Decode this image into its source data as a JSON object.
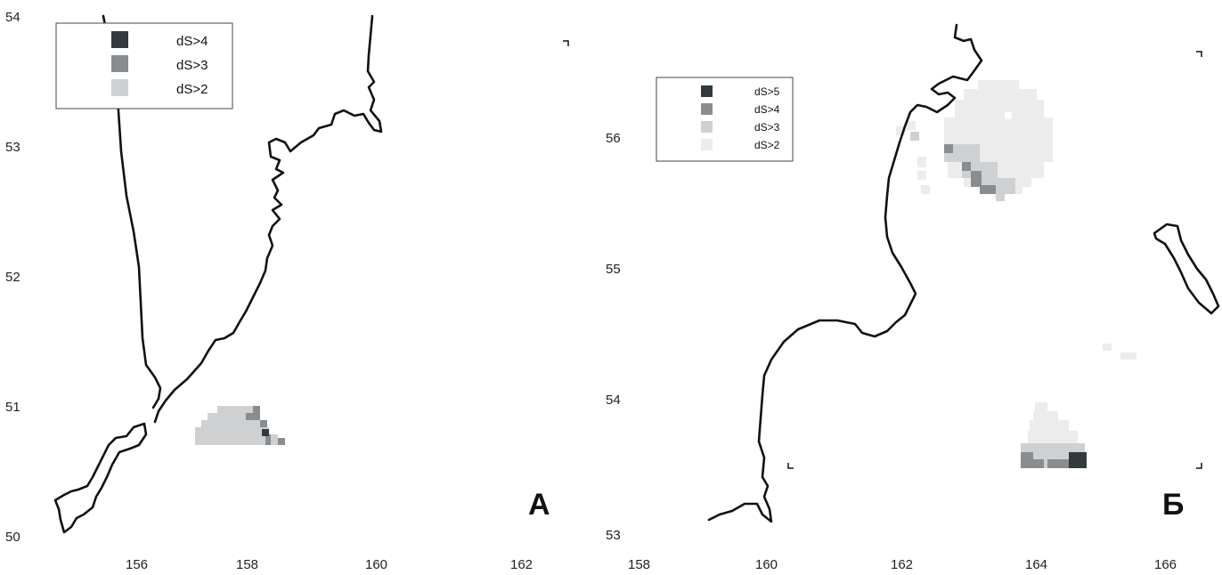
{
  "colors": {
    "gt5": "#333a3e",
    "gt4": "#8a8d8f",
    "gt3": "#cfd0d1",
    "gt2": "#ececec",
    "coast": "#111111"
  },
  "panels": [
    {
      "letter": "А",
      "x_ticks": [
        "156",
        "158",
        "160",
        "162"
      ],
      "y_ticks": [
        "54",
        "53",
        "52",
        "51",
        "50"
      ],
      "legend": [
        {
          "label": "dS>4",
          "color": "#333a3e"
        },
        {
          "label": "dS>3",
          "color": "#8a8d8f"
        },
        {
          "label": "dS>2",
          "color": "#cfd0d1"
        }
      ]
    },
    {
      "letter": "Б",
      "x_ticks": [
        "158",
        "160",
        "162",
        "164",
        "166"
      ],
      "y_ticks": [
        "56",
        "55",
        "54",
        "53"
      ],
      "legend": [
        {
          "label": "dS>5",
          "color": "#333a3e"
        },
        {
          "label": "dS>4",
          "color": "#8a8d8f"
        },
        {
          "label": "dS>3",
          "color": "#cfd0d1"
        },
        {
          "label": "dS>2",
          "color": "#ececec"
        }
      ]
    }
  ]
}
